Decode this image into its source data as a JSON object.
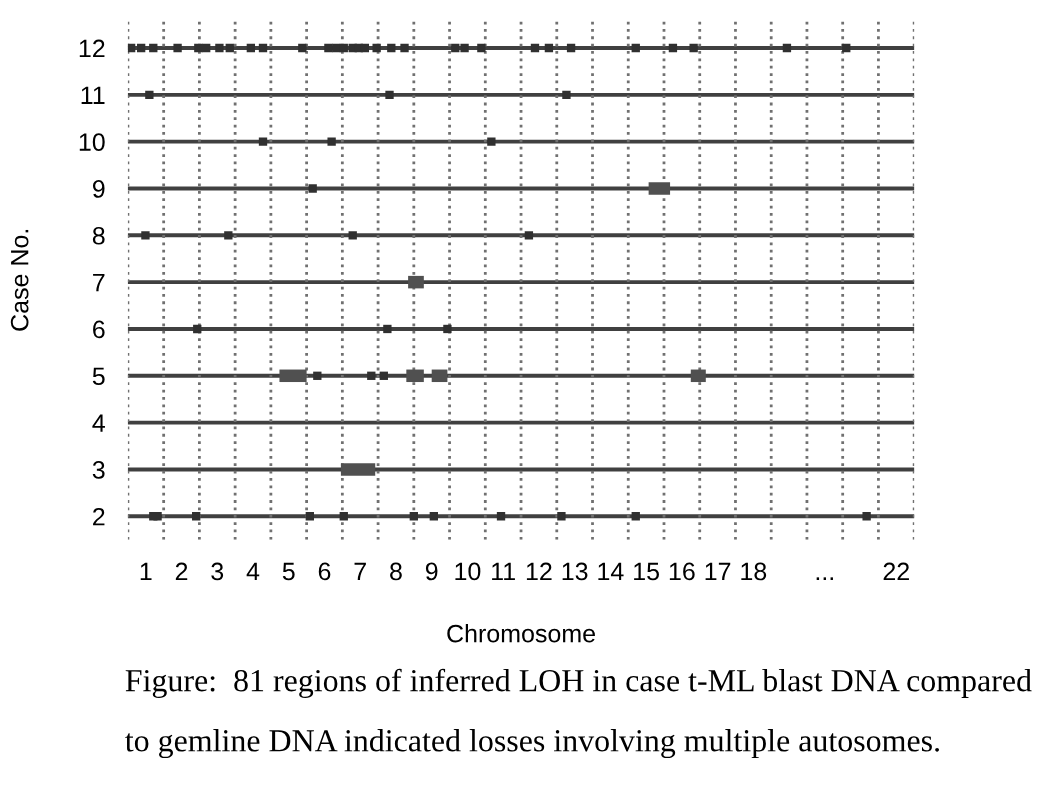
{
  "chart_data": {
    "type": "scatter",
    "xlabel": "Chromosome",
    "ylabel": "Case No.",
    "annotations": [
      "Figure:  81 regions of inferred LOH in case t-ML blast DNA compared to gemline DNA indicated losses involving multiple autosomes."
    ],
    "xlim": [
      0.5,
      22.5
    ],
    "ylim": [
      1.5,
      12.6
    ],
    "xticks": [
      1,
      2,
      3,
      4,
      5,
      6,
      7,
      8,
      9,
      10,
      11,
      12,
      13,
      14,
      15,
      16,
      17,
      18,
      {
        "value": 20,
        "label": "..."
      },
      22
    ],
    "yticks": [
      2,
      3,
      4,
      5,
      6,
      7,
      8,
      9,
      10,
      11,
      12
    ],
    "grid": "y",
    "marker": "square",
    "ref_lines": [
      {
        "axis": "x",
        "value": 0.5,
        "line_style": "dotted"
      },
      {
        "axis": "x",
        "value": 1.5,
        "line_style": "dotted"
      },
      {
        "axis": "x",
        "value": 2.5,
        "line_style": "dotted"
      },
      {
        "axis": "x",
        "value": 3.5,
        "line_style": "dotted"
      },
      {
        "axis": "x",
        "value": 4.5,
        "line_style": "dotted"
      },
      {
        "axis": "x",
        "value": 5.5,
        "line_style": "dotted"
      },
      {
        "axis": "x",
        "value": 6.5,
        "line_style": "dotted"
      },
      {
        "axis": "x",
        "value": 7.5,
        "line_style": "dotted"
      },
      {
        "axis": "x",
        "value": 8.5,
        "line_style": "dotted"
      },
      {
        "axis": "x",
        "value": 9.5,
        "line_style": "dotted"
      },
      {
        "axis": "x",
        "value": 10.5,
        "line_style": "dotted"
      },
      {
        "axis": "x",
        "value": 11.5,
        "line_style": "dotted"
      },
      {
        "axis": "x",
        "value": 12.5,
        "line_style": "dotted"
      },
      {
        "axis": "x",
        "value": 13.5,
        "line_style": "dotted"
      },
      {
        "axis": "x",
        "value": 14.5,
        "line_style": "dotted"
      },
      {
        "axis": "x",
        "value": 15.5,
        "line_style": "dotted"
      },
      {
        "axis": "x",
        "value": 16.5,
        "line_style": "dotted"
      },
      {
        "axis": "x",
        "value": 17.5,
        "line_style": "dotted"
      },
      {
        "axis": "x",
        "value": 18.5,
        "line_style": "dotted"
      },
      {
        "axis": "x",
        "value": 19.5,
        "line_style": "dotted"
      },
      {
        "axis": "x",
        "value": 20.5,
        "line_style": "dotted"
      },
      {
        "axis": "x",
        "value": 21.5,
        "line_style": "dotted"
      },
      {
        "axis": "x",
        "value": 22.5,
        "line_style": "dotted"
      }
    ],
    "series": [
      {
        "color": "#303030",
        "x": [
          0.59,
          0.87,
          1.21,
          1.89,
          2.47,
          2.69,
          3.06,
          3.35,
          3.94,
          4.28,
          5.38,
          6.11,
          6.33,
          6.54,
          6.79,
          6.96,
          7.13,
          7.46,
          7.87,
          8.24,
          9.66,
          9.92,
          10.39,
          11.89,
          12.28,
          12.9,
          14.71,
          15.75,
          16.33,
          18.94,
          20.6,
          1.1,
          7.82,
          12.77,
          4.28,
          6.2,
          10.67,
          5.67,
          0.99,
          3.31,
          6.79,
          11.72,
          2.44,
          7.76,
          9.44,
          5.8,
          7.31,
          7.66,
          1.21,
          1.33,
          2.41,
          5.59,
          6.54,
          8.5,
          9.06,
          10.94,
          12.63,
          14.71,
          21.17
        ],
        "values": [
          12,
          12,
          12,
          12,
          12,
          12,
          12,
          12,
          12,
          12,
          12,
          12,
          12,
          12,
          12,
          12,
          12,
          12,
          12,
          12,
          12,
          12,
          12,
          12,
          12,
          12,
          12,
          12,
          12,
          12,
          12,
          11,
          11,
          11,
          10,
          10,
          10,
          9,
          8,
          8,
          8,
          8,
          6,
          6,
          6,
          5,
          5,
          5,
          2,
          2,
          2,
          2,
          2,
          2,
          2,
          2,
          2,
          2,
          2
        ]
      },
      {
        "type": "line",
        "marker": "none",
        "color": "#505050",
        "x": [
          15.07,
          15.67
        ],
        "values": [
          9,
          9
        ]
      },
      {
        "type": "line",
        "marker": "none",
        "color": "#505050",
        "x": [
          8.34,
          8.78
        ],
        "values": [
          7,
          7
        ]
      },
      {
        "type": "line",
        "marker": "none",
        "color": "#505050",
        "x": [
          4.74,
          5.5
        ],
        "values": [
          5,
          5
        ]
      },
      {
        "type": "line",
        "marker": "none",
        "color": "#505050",
        "x": [
          8.29,
          8.78
        ],
        "values": [
          5,
          5
        ]
      },
      {
        "type": "line",
        "marker": "none",
        "color": "#505050",
        "x": [
          9.0,
          9.44
        ],
        "values": [
          5,
          5
        ]
      },
      {
        "type": "line",
        "marker": "none",
        "color": "#505050",
        "x": [
          16.25,
          16.67
        ],
        "values": [
          5,
          5
        ]
      },
      {
        "type": "line",
        "marker": "none",
        "color": "#505050",
        "x": [
          6.46,
          7.42
        ],
        "values": [
          3,
          3
        ]
      }
    ]
  }
}
